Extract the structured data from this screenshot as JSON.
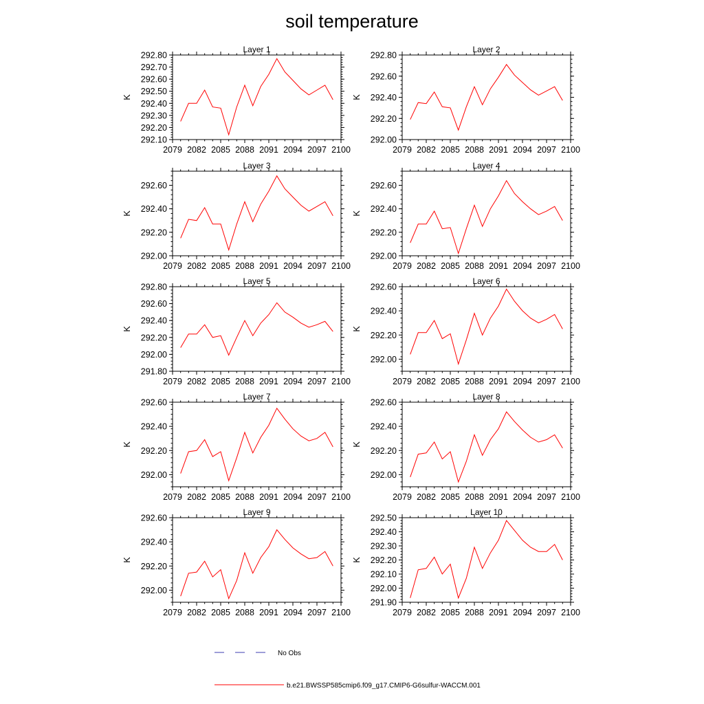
{
  "title": "soil temperature",
  "legend": {
    "obs_label": "No Obs",
    "obs_color": "#3b3bb0",
    "model_label": "b.e21.BWSSP585cmip6.f09_g17.CMIP6-G6sulfur-WACCM.001",
    "model_color": "#ff0000"
  },
  "chart_data": [
    {
      "type": "line",
      "title": "Layer 1",
      "ylabel": "K",
      "xlim": [
        2079,
        2100
      ],
      "ylim": [
        292.1,
        292.8
      ],
      "xticks": [
        "2079",
        "2082",
        "2085",
        "2088",
        "2091",
        "2094",
        "2097",
        "2100"
      ],
      "yticks": [
        "292.10",
        "292.20",
        "292.30",
        "292.40",
        "292.50",
        "292.60",
        "292.70",
        "292.80"
      ],
      "x": [
        2080,
        2081,
        2082,
        2083,
        2084,
        2085,
        2086,
        2087,
        2088,
        2089,
        2090,
        2091,
        2092,
        2093,
        2094,
        2095,
        2096,
        2097,
        2098,
        2099
      ],
      "series": [
        {
          "name": "b.e21.BWSSP585cmip6.f09_g17.CMIP6-G6sulfur-WACCM.001",
          "values": [
            292.25,
            292.4,
            292.4,
            292.51,
            292.37,
            292.36,
            292.14,
            292.37,
            292.55,
            292.38,
            292.54,
            292.64,
            292.77,
            292.66,
            292.59,
            292.52,
            292.47,
            292.51,
            292.55,
            292.43
          ]
        }
      ]
    },
    {
      "type": "line",
      "title": "Layer 2",
      "ylabel": "K",
      "xlim": [
        2079,
        2100
      ],
      "ylim": [
        292.0,
        292.8
      ],
      "xticks": [
        "2079",
        "2082",
        "2085",
        "2088",
        "2091",
        "2094",
        "2097",
        "2100"
      ],
      "yticks": [
        "292.00",
        "292.20",
        "292.40",
        "292.60",
        "292.80"
      ],
      "x": [
        2080,
        2081,
        2082,
        2083,
        2084,
        2085,
        2086,
        2087,
        2088,
        2089,
        2090,
        2091,
        2092,
        2093,
        2094,
        2095,
        2096,
        2097,
        2098,
        2099
      ],
      "series": [
        {
          "name": "b.e21.BWSSP585cmip6.f09_g17.CMIP6-G6sulfur-WACCM.001",
          "values": [
            292.19,
            292.35,
            292.34,
            292.45,
            292.31,
            292.3,
            292.09,
            292.31,
            292.5,
            292.33,
            292.48,
            292.59,
            292.71,
            292.61,
            292.54,
            292.47,
            292.42,
            292.46,
            292.5,
            292.37
          ]
        }
      ]
    },
    {
      "type": "line",
      "title": "Layer 3",
      "ylabel": "K",
      "xlim": [
        2079,
        2100
      ],
      "ylim": [
        292.0,
        292.72
      ],
      "xticks": [
        "2079",
        "2082",
        "2085",
        "2088",
        "2091",
        "2094",
        "2097",
        "2100"
      ],
      "yticks": [
        "292.00",
        "292.20",
        "292.40",
        "292.60"
      ],
      "x": [
        2080,
        2081,
        2082,
        2083,
        2084,
        2085,
        2086,
        2087,
        2088,
        2089,
        2090,
        2091,
        2092,
        2093,
        2094,
        2095,
        2096,
        2097,
        2098,
        2099
      ],
      "series": [
        {
          "name": "b.e21.BWSSP585cmip6.f09_g17.CMIP6-G6sulfur-WACCM.001",
          "values": [
            292.15,
            292.31,
            292.3,
            292.41,
            292.27,
            292.27,
            292.05,
            292.27,
            292.46,
            292.29,
            292.44,
            292.55,
            292.68,
            292.57,
            292.5,
            292.43,
            292.38,
            292.42,
            292.46,
            292.34
          ]
        }
      ]
    },
    {
      "type": "line",
      "title": "Layer 4",
      "ylabel": "K",
      "xlim": [
        2079,
        2100
      ],
      "ylim": [
        292.0,
        292.72
      ],
      "xticks": [
        "2079",
        "2082",
        "2085",
        "2088",
        "2091",
        "2094",
        "2097",
        "2100"
      ],
      "yticks": [
        "292.00",
        "292.20",
        "292.40",
        "292.60"
      ],
      "x": [
        2080,
        2081,
        2082,
        2083,
        2084,
        2085,
        2086,
        2087,
        2088,
        2089,
        2090,
        2091,
        2092,
        2093,
        2094,
        2095,
        2096,
        2097,
        2098,
        2099
      ],
      "series": [
        {
          "name": "b.e21.BWSSP585cmip6.f09_g17.CMIP6-G6sulfur-WACCM.001",
          "values": [
            292.11,
            292.27,
            292.27,
            292.38,
            292.23,
            292.24,
            292.02,
            292.23,
            292.43,
            292.25,
            292.4,
            292.51,
            292.64,
            292.53,
            292.46,
            292.4,
            292.35,
            292.38,
            292.42,
            292.3
          ]
        }
      ]
    },
    {
      "type": "line",
      "title": "Layer 5",
      "ylabel": "K",
      "xlim": [
        2079,
        2100
      ],
      "ylim": [
        291.8,
        292.8
      ],
      "xticks": [
        "2079",
        "2082",
        "2085",
        "2088",
        "2091",
        "2094",
        "2097",
        "2100"
      ],
      "yticks": [
        "291.80",
        "292.00",
        "292.20",
        "292.40",
        "292.60",
        "292.80"
      ],
      "x": [
        2080,
        2081,
        2082,
        2083,
        2084,
        2085,
        2086,
        2087,
        2088,
        2089,
        2090,
        2091,
        2092,
        2093,
        2094,
        2095,
        2096,
        2097,
        2098,
        2099
      ],
      "series": [
        {
          "name": "b.e21.BWSSP585cmip6.f09_g17.CMIP6-G6sulfur-WACCM.001",
          "values": [
            292.08,
            292.24,
            292.24,
            292.35,
            292.2,
            292.22,
            291.99,
            292.2,
            292.4,
            292.22,
            292.37,
            292.47,
            292.61,
            292.5,
            292.44,
            292.37,
            292.32,
            292.35,
            292.39,
            292.27
          ]
        }
      ]
    },
    {
      "type": "line",
      "title": "Layer 6",
      "ylabel": "K",
      "xlim": [
        2079,
        2100
      ],
      "ylim": [
        291.9,
        292.6
      ],
      "xticks": [
        "2079",
        "2082",
        "2085",
        "2088",
        "2091",
        "2094",
        "2097",
        "2100"
      ],
      "yticks": [
        "292.00",
        "292.20",
        "292.40",
        "292.60"
      ],
      "x": [
        2080,
        2081,
        2082,
        2083,
        2084,
        2085,
        2086,
        2087,
        2088,
        2089,
        2090,
        2091,
        2092,
        2093,
        2094,
        2095,
        2096,
        2097,
        2098,
        2099
      ],
      "series": [
        {
          "name": "b.e21.BWSSP585cmip6.f09_g17.CMIP6-G6sulfur-WACCM.001",
          "values": [
            292.04,
            292.22,
            292.22,
            292.32,
            292.17,
            292.21,
            291.96,
            292.16,
            292.38,
            292.2,
            292.34,
            292.44,
            292.58,
            292.48,
            292.4,
            292.34,
            292.3,
            292.33,
            292.37,
            292.25
          ]
        }
      ]
    },
    {
      "type": "line",
      "title": "Layer 7",
      "ylabel": "K",
      "xlim": [
        2079,
        2100
      ],
      "ylim": [
        291.9,
        292.6
      ],
      "xticks": [
        "2079",
        "2082",
        "2085",
        "2088",
        "2091",
        "2094",
        "2097",
        "2100"
      ],
      "yticks": [
        "292.00",
        "292.20",
        "292.40",
        "292.60"
      ],
      "x": [
        2080,
        2081,
        2082,
        2083,
        2084,
        2085,
        2086,
        2087,
        2088,
        2089,
        2090,
        2091,
        2092,
        2093,
        2094,
        2095,
        2096,
        2097,
        2098,
        2099
      ],
      "series": [
        {
          "name": "b.e21.BWSSP585cmip6.f09_g17.CMIP6-G6sulfur-WACCM.001",
          "values": [
            292.01,
            292.19,
            292.2,
            292.29,
            292.15,
            292.19,
            291.95,
            292.14,
            292.35,
            292.18,
            292.31,
            292.41,
            292.55,
            292.46,
            292.38,
            292.32,
            292.28,
            292.3,
            292.35,
            292.23
          ]
        }
      ]
    },
    {
      "type": "line",
      "title": "Layer 8",
      "ylabel": "K",
      "xlim": [
        2079,
        2100
      ],
      "ylim": [
        291.9,
        292.6
      ],
      "xticks": [
        "2079",
        "2082",
        "2085",
        "2088",
        "2091",
        "2094",
        "2097",
        "2100"
      ],
      "yticks": [
        "292.00",
        "292.20",
        "292.40",
        "292.60"
      ],
      "x": [
        2080,
        2081,
        2082,
        2083,
        2084,
        2085,
        2086,
        2087,
        2088,
        2089,
        2090,
        2091,
        2092,
        2093,
        2094,
        2095,
        2096,
        2097,
        2098,
        2099
      ],
      "series": [
        {
          "name": "b.e21.BWSSP585cmip6.f09_g17.CMIP6-G6sulfur-WACCM.001",
          "values": [
            291.98,
            292.17,
            292.18,
            292.27,
            292.13,
            292.19,
            291.94,
            292.11,
            292.33,
            292.16,
            292.29,
            292.38,
            292.52,
            292.44,
            292.37,
            292.31,
            292.27,
            292.29,
            292.33,
            292.22
          ]
        }
      ]
    },
    {
      "type": "line",
      "title": "Layer 9",
      "ylabel": "K",
      "xlim": [
        2079,
        2100
      ],
      "ylim": [
        291.9,
        292.6
      ],
      "xticks": [
        "2079",
        "2082",
        "2085",
        "2088",
        "2091",
        "2094",
        "2097",
        "2100"
      ],
      "yticks": [
        "292.00",
        "292.20",
        "292.40",
        "292.60"
      ],
      "x": [
        2080,
        2081,
        2082,
        2083,
        2084,
        2085,
        2086,
        2087,
        2088,
        2089,
        2090,
        2091,
        2092,
        2093,
        2094,
        2095,
        2096,
        2097,
        2098,
        2099
      ],
      "series": [
        {
          "name": "b.e21.BWSSP585cmip6.f09_g17.CMIP6-G6sulfur-WACCM.001",
          "values": [
            291.95,
            292.14,
            292.15,
            292.24,
            292.11,
            292.17,
            291.93,
            292.08,
            292.31,
            292.14,
            292.27,
            292.36,
            292.5,
            292.42,
            292.35,
            292.3,
            292.26,
            292.27,
            292.32,
            292.2
          ]
        }
      ]
    },
    {
      "type": "line",
      "title": "Layer 10",
      "ylabel": "K",
      "xlim": [
        2079,
        2100
      ],
      "ylim": [
        291.9,
        292.5
      ],
      "xticks": [
        "2079",
        "2082",
        "2085",
        "2088",
        "2091",
        "2094",
        "2097",
        "2100"
      ],
      "yticks": [
        "291.90",
        "292.00",
        "292.10",
        "292.20",
        "292.30",
        "292.40",
        "292.50"
      ],
      "x": [
        2080,
        2081,
        2082,
        2083,
        2084,
        2085,
        2086,
        2087,
        2088,
        2089,
        2090,
        2091,
        2092,
        2093,
        2094,
        2095,
        2096,
        2097,
        2098,
        2099
      ],
      "series": [
        {
          "name": "b.e21.BWSSP585cmip6.f09_g17.CMIP6-G6sulfur-WACCM.001",
          "values": [
            291.93,
            292.13,
            292.14,
            292.22,
            292.1,
            292.17,
            291.93,
            292.07,
            292.29,
            292.14,
            292.25,
            292.34,
            292.48,
            292.41,
            292.34,
            292.29,
            292.26,
            292.26,
            292.31,
            292.2
          ]
        }
      ]
    }
  ]
}
